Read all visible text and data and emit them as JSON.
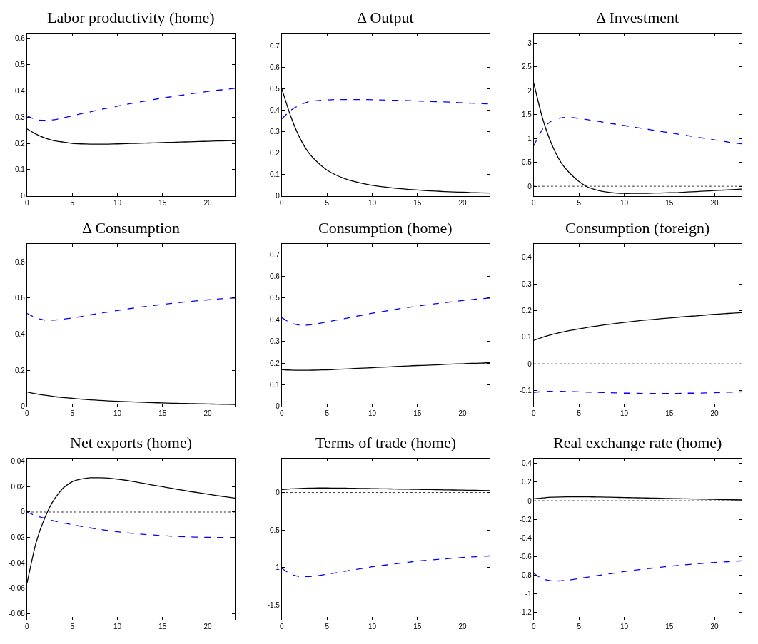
{
  "chart_data": [
    {
      "type": "line",
      "title": "Labor productivity (home)",
      "x": [
        0,
        1,
        2,
        3,
        4,
        5,
        6,
        7,
        8,
        9,
        10,
        11,
        12,
        13,
        14,
        15,
        16,
        17,
        18,
        19,
        20,
        21,
        22,
        23
      ],
      "xlim": [
        0,
        23
      ],
      "xticks": [
        0,
        5,
        10,
        15,
        20
      ],
      "ylim": [
        0,
        0.62
      ],
      "yticks": [
        0,
        0.1,
        0.2,
        0.3,
        0.4,
        0.5,
        0.6
      ],
      "series": [
        {
          "color": "#000000",
          "line_style": "solid",
          "values": [
            0.255,
            0.235,
            0.22,
            0.21,
            0.205,
            0.2,
            0.198,
            0.197,
            0.197,
            0.197,
            0.198,
            0.199,
            0.2,
            0.201,
            0.202,
            0.203,
            0.204,
            0.205,
            0.206,
            0.207,
            0.208,
            0.209,
            0.21,
            0.211
          ]
        },
        {
          "color": "#0000ff",
          "line_style": "dashed",
          "values": [
            0.305,
            0.29,
            0.288,
            0.29,
            0.297,
            0.305,
            0.313,
            0.32,
            0.328,
            0.335,
            0.342,
            0.349,
            0.355,
            0.361,
            0.367,
            0.373,
            0.378,
            0.383,
            0.388,
            0.393,
            0.398,
            0.402,
            0.406,
            0.41
          ]
        }
      ]
    },
    {
      "type": "line",
      "title": "Δ Output",
      "x": [
        0,
        1,
        2,
        3,
        4,
        5,
        6,
        7,
        8,
        9,
        10,
        11,
        12,
        13,
        14,
        15,
        16,
        17,
        18,
        19,
        20,
        21,
        22,
        23
      ],
      "xlim": [
        0,
        23
      ],
      "xticks": [
        0,
        5,
        10,
        15,
        20
      ],
      "ylim": [
        0,
        0.76
      ],
      "yticks": [
        0,
        0.1,
        0.2,
        0.3,
        0.4,
        0.5,
        0.6,
        0.7
      ],
      "series": [
        {
          "color": "#000000",
          "line_style": "solid",
          "values": [
            0.5,
            0.37,
            0.27,
            0.2,
            0.155,
            0.12,
            0.097,
            0.08,
            0.067,
            0.057,
            0.049,
            0.043,
            0.038,
            0.034,
            0.03,
            0.027,
            0.024,
            0.022,
            0.02,
            0.018,
            0.017,
            0.015,
            0.014,
            0.013
          ]
        },
        {
          "color": "#0000ff",
          "line_style": "dashed",
          "values": [
            0.36,
            0.4,
            0.425,
            0.44,
            0.445,
            0.448,
            0.45,
            0.45,
            0.45,
            0.45,
            0.449,
            0.448,
            0.447,
            0.446,
            0.445,
            0.443,
            0.442,
            0.44,
            0.439,
            0.437,
            0.435,
            0.433,
            0.431,
            0.43
          ]
        }
      ]
    },
    {
      "type": "line",
      "title": "Δ Investment",
      "x": [
        0,
        1,
        2,
        3,
        4,
        5,
        6,
        7,
        8,
        9,
        10,
        11,
        12,
        13,
        14,
        15,
        16,
        17,
        18,
        19,
        20,
        21,
        22,
        23
      ],
      "xlim": [
        0,
        23
      ],
      "xticks": [
        0,
        5,
        10,
        15,
        20
      ],
      "ylim": [
        -0.2,
        3.2
      ],
      "yticks": [
        0,
        0.5,
        1,
        1.5,
        2,
        2.5,
        3
      ],
      "ref_lines": [
        {
          "axis": "y",
          "value": 0,
          "color": "#000000",
          "line_style": "dotted"
        }
      ],
      "series": [
        {
          "color": "#000000",
          "line_style": "solid",
          "values": [
            2.15,
            1.4,
            0.87,
            0.5,
            0.27,
            0.1,
            -0.02,
            -0.08,
            -0.12,
            -0.14,
            -0.15,
            -0.15,
            -0.15,
            -0.145,
            -0.14,
            -0.135,
            -0.13,
            -0.12,
            -0.11,
            -0.1,
            -0.09,
            -0.08,
            -0.07,
            -0.06
          ]
        },
        {
          "color": "#0000ff",
          "line_style": "dashed",
          "values": [
            0.85,
            1.2,
            1.37,
            1.43,
            1.44,
            1.42,
            1.39,
            1.36,
            1.33,
            1.3,
            1.27,
            1.24,
            1.21,
            1.18,
            1.15,
            1.12,
            1.09,
            1.06,
            1.03,
            1.0,
            0.97,
            0.94,
            0.91,
            0.89
          ]
        }
      ]
    },
    {
      "type": "line",
      "title": "Δ Consumption",
      "x": [
        0,
        1,
        2,
        3,
        4,
        5,
        6,
        7,
        8,
        9,
        10,
        11,
        12,
        13,
        14,
        15,
        16,
        17,
        18,
        19,
        20,
        21,
        22,
        23
      ],
      "xlim": [
        0,
        23
      ],
      "xticks": [
        0,
        5,
        10,
        15,
        20
      ],
      "ylim": [
        0,
        0.9
      ],
      "yticks": [
        0,
        0.2,
        0.4,
        0.6,
        0.8
      ],
      "series": [
        {
          "color": "#000000",
          "line_style": "solid",
          "values": [
            0.08,
            0.07,
            0.062,
            0.055,
            0.05,
            0.045,
            0.041,
            0.037,
            0.034,
            0.031,
            0.029,
            0.027,
            0.025,
            0.023,
            0.021,
            0.02,
            0.018,
            0.017,
            0.016,
            0.015,
            0.014,
            0.013,
            0.012,
            0.011
          ]
        },
        {
          "color": "#0000ff",
          "line_style": "dashed",
          "values": [
            0.515,
            0.49,
            0.478,
            0.478,
            0.483,
            0.49,
            0.498,
            0.507,
            0.515,
            0.523,
            0.531,
            0.539,
            0.546,
            0.553,
            0.559,
            0.565,
            0.571,
            0.576,
            0.581,
            0.586,
            0.59,
            0.594,
            0.598,
            0.6
          ]
        }
      ]
    },
    {
      "type": "line",
      "title": "Consumption (home)",
      "x": [
        0,
        1,
        2,
        3,
        4,
        5,
        6,
        7,
        8,
        9,
        10,
        11,
        12,
        13,
        14,
        15,
        16,
        17,
        18,
        19,
        20,
        21,
        22,
        23
      ],
      "xlim": [
        0,
        23
      ],
      "xticks": [
        0,
        5,
        10,
        15,
        20
      ],
      "ylim": [
        0,
        0.75
      ],
      "yticks": [
        0,
        0.1,
        0.2,
        0.3,
        0.4,
        0.5,
        0.6,
        0.7
      ],
      "series": [
        {
          "color": "#000000",
          "line_style": "solid",
          "values": [
            0.17,
            0.168,
            0.167,
            0.167,
            0.168,
            0.169,
            0.171,
            0.173,
            0.175,
            0.177,
            0.179,
            0.181,
            0.183,
            0.185,
            0.187,
            0.189,
            0.19,
            0.192,
            0.194,
            0.196,
            0.197,
            0.199,
            0.2,
            0.202
          ]
        },
        {
          "color": "#0000ff",
          "line_style": "dashed",
          "values": [
            0.41,
            0.385,
            0.375,
            0.376,
            0.382,
            0.39,
            0.398,
            0.406,
            0.414,
            0.422,
            0.43,
            0.437,
            0.444,
            0.451,
            0.457,
            0.463,
            0.469,
            0.474,
            0.479,
            0.484,
            0.489,
            0.493,
            0.497,
            0.5
          ]
        }
      ]
    },
    {
      "type": "line",
      "title": "Consumption (foreign)",
      "x": [
        0,
        1,
        2,
        3,
        4,
        5,
        6,
        7,
        8,
        9,
        10,
        11,
        12,
        13,
        14,
        15,
        16,
        17,
        18,
        19,
        20,
        21,
        22,
        23
      ],
      "xlim": [
        0,
        23
      ],
      "xticks": [
        0,
        5,
        10,
        15,
        20
      ],
      "ylim": [
        -0.16,
        0.45
      ],
      "yticks": [
        -0.1,
        0,
        0.1,
        0.2,
        0.3,
        0.4
      ],
      "ref_lines": [
        {
          "axis": "y",
          "value": 0,
          "color": "#000000",
          "line_style": "dotted"
        }
      ],
      "series": [
        {
          "color": "#000000",
          "line_style": "solid",
          "values": [
            0.088,
            0.1,
            0.11,
            0.118,
            0.125,
            0.131,
            0.137,
            0.142,
            0.147,
            0.151,
            0.155,
            0.159,
            0.163,
            0.166,
            0.169,
            0.172,
            0.175,
            0.178,
            0.18,
            0.183,
            0.186,
            0.188,
            0.19,
            0.192
          ]
        },
        {
          "color": "#0000ff",
          "line_style": "dashed",
          "values": [
            -0.107,
            -0.104,
            -0.103,
            -0.103,
            -0.104,
            -0.105,
            -0.106,
            -0.107,
            -0.108,
            -0.109,
            -0.11,
            -0.11,
            -0.111,
            -0.111,
            -0.111,
            -0.111,
            -0.111,
            -0.11,
            -0.11,
            -0.109,
            -0.108,
            -0.107,
            -0.106,
            -0.105
          ]
        }
      ]
    },
    {
      "type": "line",
      "title": "Net exports (home)",
      "x": [
        0,
        1,
        2,
        3,
        4,
        5,
        6,
        7,
        8,
        9,
        10,
        11,
        12,
        13,
        14,
        15,
        16,
        17,
        18,
        19,
        20,
        21,
        22,
        23
      ],
      "xlim": [
        0,
        23
      ],
      "xticks": [
        0,
        5,
        10,
        15,
        20
      ],
      "ylim": [
        -0.085,
        0.042
      ],
      "yticks": [
        -0.08,
        -0.06,
        -0.04,
        -0.02,
        0,
        0.02,
        0.04
      ],
      "ref_lines": [
        {
          "axis": "y",
          "value": 0,
          "color": "#000000",
          "line_style": "dotted"
        }
      ],
      "series": [
        {
          "color": "#000000",
          "line_style": "solid",
          "values": [
            -0.056,
            -0.024,
            -0.004,
            0.01,
            0.019,
            0.024,
            0.026,
            0.027,
            0.027,
            0.0268,
            0.026,
            0.025,
            0.0238,
            0.0225,
            0.0212,
            0.02,
            0.0187,
            0.0175,
            0.0163,
            0.0152,
            0.0141,
            0.013,
            0.012,
            0.011
          ]
        },
        {
          "color": "#0000ff",
          "line_style": "dashed",
          "values": [
            0,
            -0.003,
            -0.005,
            -0.007,
            -0.0085,
            -0.01,
            -0.0113,
            -0.0125,
            -0.0136,
            -0.0146,
            -0.0155,
            -0.0163,
            -0.017,
            -0.0176,
            -0.0181,
            -0.0186,
            -0.019,
            -0.0193,
            -0.0196,
            -0.0198,
            -0.0199,
            -0.02,
            -0.02,
            -0.02
          ]
        }
      ]
    },
    {
      "type": "line",
      "title": "Terms of trade (home)",
      "x": [
        0,
        1,
        2,
        3,
        4,
        5,
        6,
        7,
        8,
        9,
        10,
        11,
        12,
        13,
        14,
        15,
        16,
        17,
        18,
        19,
        20,
        21,
        22,
        23
      ],
      "xlim": [
        0,
        23
      ],
      "xticks": [
        0,
        5,
        10,
        15,
        20
      ],
      "ylim": [
        -1.7,
        0.45
      ],
      "yticks": [
        -1.5,
        -1,
        -0.5,
        0
      ],
      "ref_lines": [
        {
          "axis": "y",
          "value": 0,
          "color": "#000000",
          "line_style": "dotted"
        }
      ],
      "series": [
        {
          "color": "#000000",
          "line_style": "solid",
          "values": [
            0.04,
            0.05,
            0.055,
            0.058,
            0.06,
            0.06,
            0.059,
            0.058,
            0.056,
            0.054,
            0.052,
            0.05,
            0.048,
            0.046,
            0.044,
            0.042,
            0.04,
            0.038,
            0.036,
            0.034,
            0.032,
            0.03,
            0.028,
            0.026
          ]
        },
        {
          "color": "#0000ff",
          "line_style": "dashed",
          "values": [
            -1.01,
            -1.09,
            -1.12,
            -1.12,
            -1.11,
            -1.09,
            -1.07,
            -1.05,
            -1.03,
            -1.01,
            -0.99,
            -0.975,
            -0.96,
            -0.945,
            -0.93,
            -0.915,
            -0.905,
            -0.895,
            -0.885,
            -0.875,
            -0.867,
            -0.86,
            -0.853,
            -0.846
          ]
        }
      ]
    },
    {
      "type": "line",
      "title": "Real exchange rate (home)",
      "x": [
        0,
        1,
        2,
        3,
        4,
        5,
        6,
        7,
        8,
        9,
        10,
        11,
        12,
        13,
        14,
        15,
        16,
        17,
        18,
        19,
        20,
        21,
        22,
        23
      ],
      "xlim": [
        0,
        23
      ],
      "xticks": [
        0,
        5,
        10,
        15,
        20
      ],
      "ylim": [
        -1.28,
        0.45
      ],
      "yticks": [
        -1.2,
        -1,
        -0.8,
        -0.6,
        -0.4,
        -0.2,
        0,
        0.2,
        0.4
      ],
      "ref_lines": [
        {
          "axis": "y",
          "value": 0,
          "color": "#000000",
          "line_style": "dotted"
        }
      ],
      "series": [
        {
          "color": "#000000",
          "line_style": "solid",
          "values": [
            0.02,
            0.03,
            0.037,
            0.04,
            0.042,
            0.042,
            0.041,
            0.04,
            0.038,
            0.036,
            0.034,
            0.032,
            0.03,
            0.028,
            0.026,
            0.024,
            0.022,
            0.02,
            0.018,
            0.016,
            0.014,
            0.012,
            0.01,
            0.008
          ]
        },
        {
          "color": "#0000ff",
          "line_style": "dashed",
          "values": [
            -0.78,
            -0.84,
            -0.86,
            -0.86,
            -0.85,
            -0.835,
            -0.82,
            -0.805,
            -0.79,
            -0.775,
            -0.76,
            -0.748,
            -0.736,
            -0.725,
            -0.714,
            -0.704,
            -0.695,
            -0.686,
            -0.678,
            -0.67,
            -0.663,
            -0.657,
            -0.651,
            -0.645
          ]
        }
      ]
    }
  ]
}
